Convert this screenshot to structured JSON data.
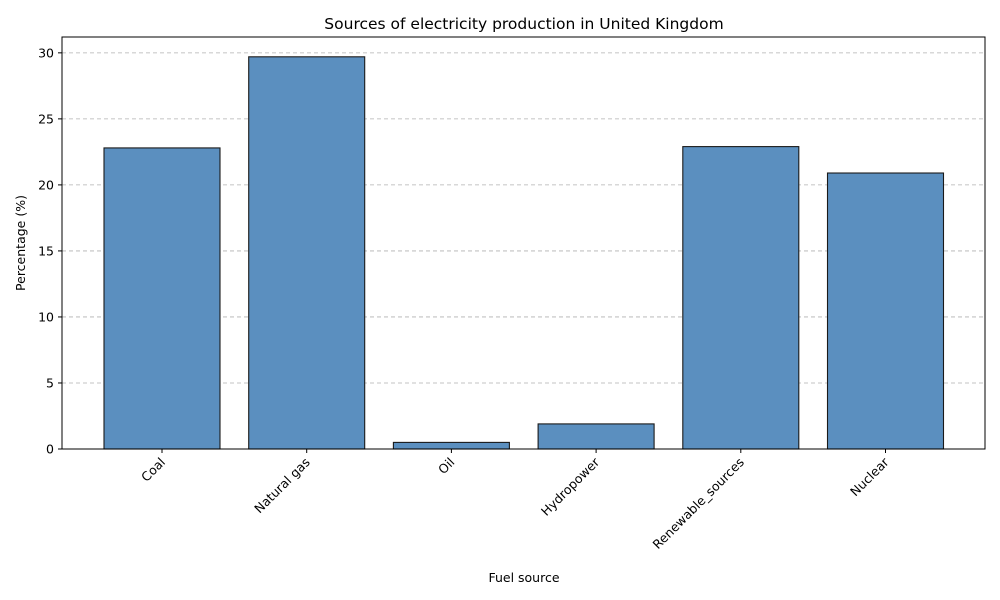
{
  "chart_data": {
    "type": "bar",
    "title": "Sources of electricity production in United Kingdom",
    "xlabel": "Fuel source",
    "ylabel": "Percentage (%)",
    "categories": [
      "Coal",
      "Natural gas",
      "Oil",
      "Hydropower",
      "Renewable_sources",
      "Nuclear"
    ],
    "values": [
      22.8,
      29.7,
      0.5,
      1.9,
      22.9,
      20.9
    ],
    "ylim": [
      0,
      31.2
    ],
    "yticks": [
      0,
      5,
      10,
      15,
      20,
      25,
      30
    ],
    "grid": "y-dashed",
    "bar_color": "#5b8fbf",
    "bar_edge_color": "#1a1a1a",
    "legend": "none"
  }
}
